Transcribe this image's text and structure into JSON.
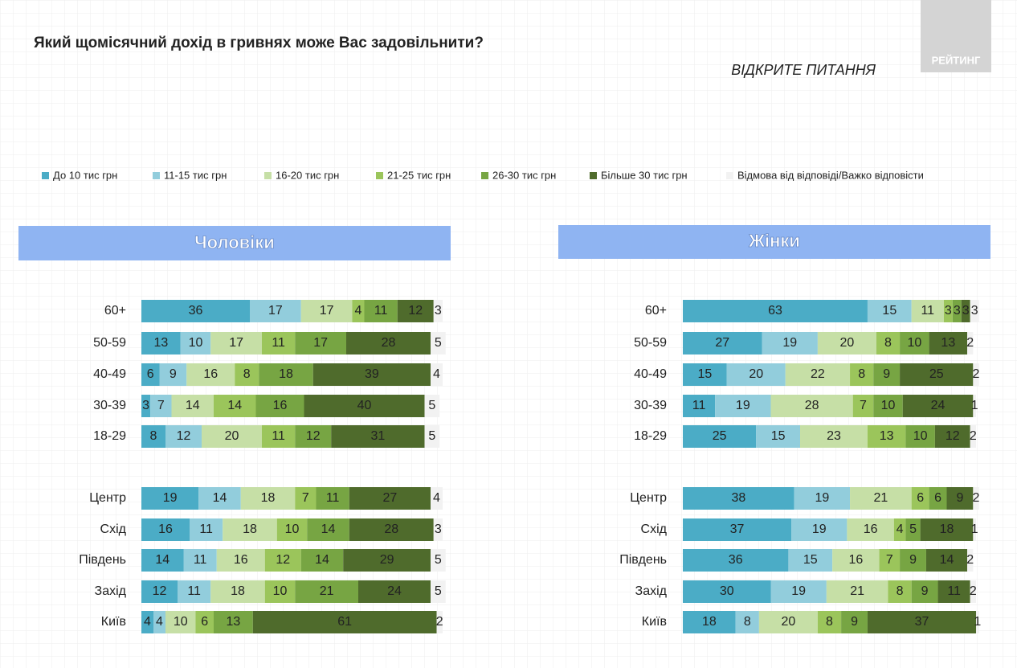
{
  "header": {
    "title": "Який щомісячний дохід в гривнях може Вас задовільнити?",
    "subtitle": "ВІДКРИТЕ ПИТАННЯ",
    "logo": "РЕЙТИНГ"
  },
  "chart_data": [
    {
      "type": "bar",
      "orientation": "horizontal",
      "stacked": true,
      "title": "Чоловіки",
      "categories": [
        "60+",
        "50-59",
        "40-49",
        "30-39",
        "18-29",
        "Центр",
        "Схід",
        "Південь",
        "Захід",
        "Київ"
      ],
      "series": [
        {
          "name": "До 10 тис грн",
          "color": "#4bacc6",
          "values": [
            36,
            13,
            6,
            3,
            8,
            19,
            16,
            14,
            12,
            4
          ]
        },
        {
          "name": "11-15 тис грн",
          "color": "#92cddc",
          "values": [
            17,
            10,
            9,
            7,
            12,
            14,
            11,
            11,
            11,
            4
          ]
        },
        {
          "name": "16-20 тис грн",
          "color": "#c6dfa6",
          "values": [
            17,
            17,
            16,
            14,
            20,
            18,
            18,
            16,
            18,
            10
          ]
        },
        {
          "name": "21-25 тис грн",
          "color": "#9bc55b",
          "values": [
            4,
            11,
            8,
            14,
            11,
            7,
            10,
            12,
            10,
            6
          ]
        },
        {
          "name": "26-30 тис грн",
          "color": "#77a543",
          "values": [
            11,
            17,
            18,
            16,
            12,
            11,
            14,
            14,
            21,
            13
          ]
        },
        {
          "name": "Більше 30 тис грн",
          "color": "#4f6b2c",
          "values": [
            12,
            28,
            39,
            40,
            31,
            27,
            28,
            29,
            24,
            61
          ]
        },
        {
          "name": "Відмова від відповіді/Важко відповісти",
          "color": "#f2f2f2",
          "values": [
            3,
            5,
            4,
            5,
            5,
            4,
            3,
            5,
            5,
            2
          ]
        }
      ]
    },
    {
      "type": "bar",
      "orientation": "horizontal",
      "stacked": true,
      "title": "Жінки",
      "categories": [
        "60+",
        "50-59",
        "40-49",
        "30-39",
        "18-29",
        "Центр",
        "Схід",
        "Південь",
        "Захід",
        "Київ"
      ],
      "series": [
        {
          "color": "#4bacc6",
          "values": [
            63,
            27,
            15,
            11,
            25,
            38,
            37,
            36,
            30,
            18
          ]
        },
        {
          "color": "#92cddc",
          "values": [
            15,
            19,
            20,
            19,
            15,
            19,
            19,
            15,
            19,
            8
          ]
        },
        {
          "color": "#c6dfa6",
          "values": [
            11,
            20,
            22,
            28,
            23,
            21,
            16,
            16,
            21,
            20
          ]
        },
        {
          "color": "#9bc55b",
          "values": [
            3,
            8,
            8,
            7,
            13,
            6,
            4,
            7,
            8,
            8
          ]
        },
        {
          "color": "#77a543",
          "values": [
            3,
            10,
            9,
            10,
            10,
            6,
            5,
            9,
            9,
            9
          ]
        },
        {
          "color": "#4f6b2c",
          "values": [
            3,
            13,
            25,
            24,
            12,
            9,
            18,
            14,
            11,
            37
          ]
        },
        {
          "color": "#f2f2f2",
          "values": [
            3,
            2,
            2,
            1,
            2,
            2,
            1,
            2,
            2,
            1
          ]
        }
      ]
    }
  ]
}
